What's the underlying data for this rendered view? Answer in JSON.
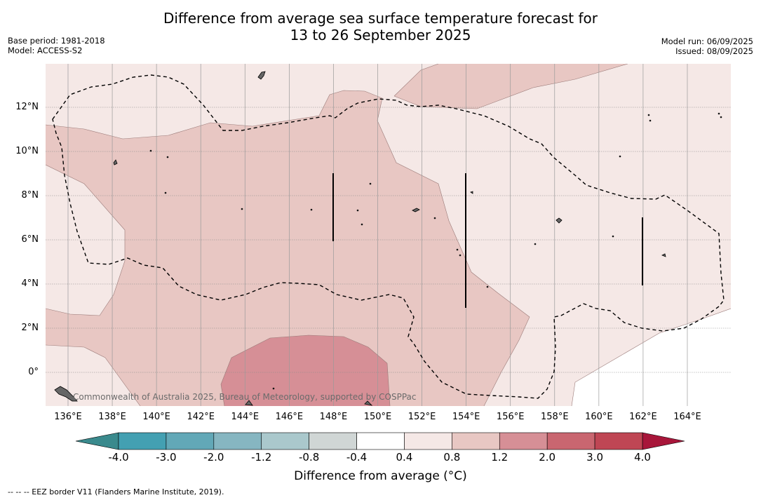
{
  "title": {
    "line1": "Difference from average sea surface temperature forecast for",
    "line2": "13 to 26 September 2025"
  },
  "meta_left": {
    "base_period": "Base period: 1981-2018",
    "model": "Model: ACCESS-S2"
  },
  "meta_right": {
    "model_run": "Model run: 06/09/2025",
    "issued": "Issued: 08/09/2025"
  },
  "map": {
    "latitude_labels": [
      "12°N",
      "10°N",
      "8°N",
      "6°N",
      "4°N",
      "2°N",
      "0°"
    ],
    "longitude_labels": [
      "136°E",
      "138°E",
      "140°E",
      "142°E",
      "144°E",
      "146°E",
      "148°E",
      "150°E",
      "152°E",
      "154°E",
      "156°E",
      "158°E",
      "160°E",
      "162°E",
      "164°E"
    ],
    "copyright": "Commonwealth of Australia 2025, Bureau of Meteorology, supported by COSPPac"
  },
  "colorbar": {
    "ticks": [
      "-4.0",
      "-3.0",
      "-2.0",
      "-1.2",
      "-0.8",
      "-0.4",
      "0.4",
      "0.8",
      "1.2",
      "2.0",
      "3.0",
      "4.0"
    ],
    "colors": [
      "#43a0b2",
      "#62a8b7",
      "#86b6c1",
      "#aac8cc",
      "#d0d6d5",
      "#ffffff",
      "#f5e8e6",
      "#e8c7c3",
      "#d68f96",
      "#c96670",
      "#bf4654"
    ],
    "under_color": "#3a8a8d",
    "over_color": "#a8163a",
    "title": "Difference from average (°C)"
  },
  "legend_note": "-- -- -- EEZ border V11 (Flanders Marine Institute, 2019)."
}
